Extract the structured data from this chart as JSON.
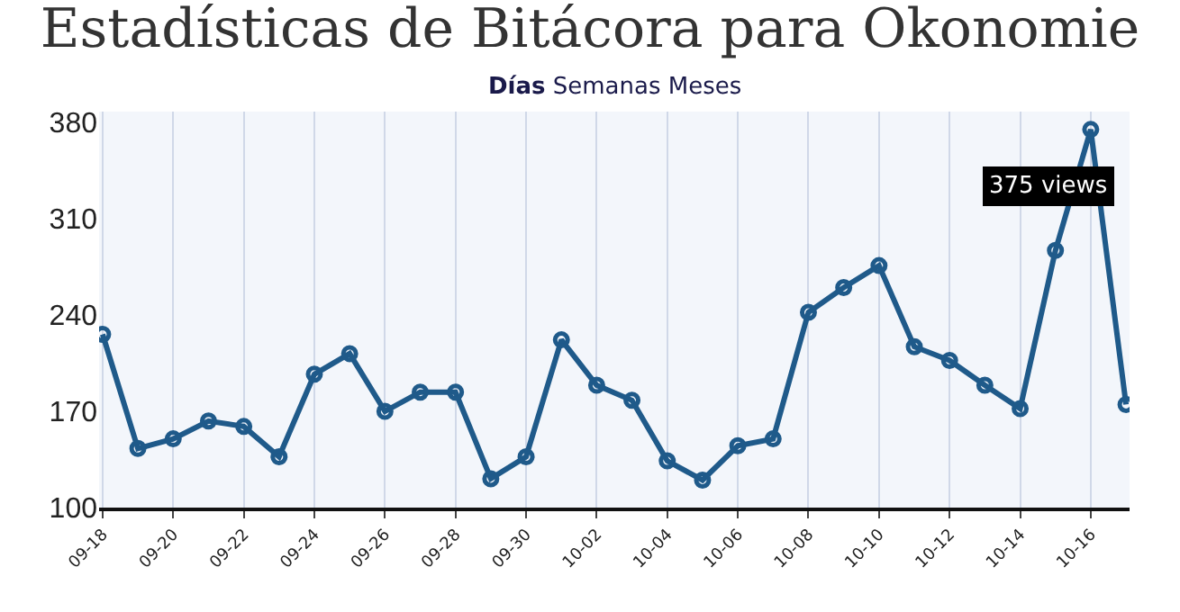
{
  "chart_data": {
    "type": "line",
    "title": "Estadísticas de Bitácora para Okonomie",
    "subtitle": "Días Semanas Meses",
    "categories": [
      "09-18",
      null,
      "09-20",
      null,
      "09-22",
      null,
      "09-24",
      null,
      "09-26",
      null,
      "09-28",
      null,
      "09-30",
      null,
      "10-02",
      null,
      "10-04",
      null,
      "10-06",
      null,
      "10-08",
      null,
      "10-10",
      null,
      "10-12",
      null,
      "10-14",
      null,
      "10-16",
      null
    ],
    "series": [
      {
        "color": "#1f5a8a",
        "values": [
          226,
          143,
          150,
          163,
          159,
          137,
          197,
          212,
          170,
          184,
          184,
          121,
          137,
          222,
          189,
          178,
          134,
          120,
          145,
          150,
          242,
          260,
          276,
          217,
          207,
          189,
          172,
          287,
          375,
          175
        ]
      }
    ],
    "annotations": [
      {
        "text": "375 views",
        "x": "10-16",
        "y": 375
      }
    ],
    "ylim": [
      100,
      388
    ],
    "yticks": [
      100,
      170,
      240,
      310,
      380
    ],
    "grid": "x",
    "marker": "circle",
    "line_style": "solid"
  }
}
